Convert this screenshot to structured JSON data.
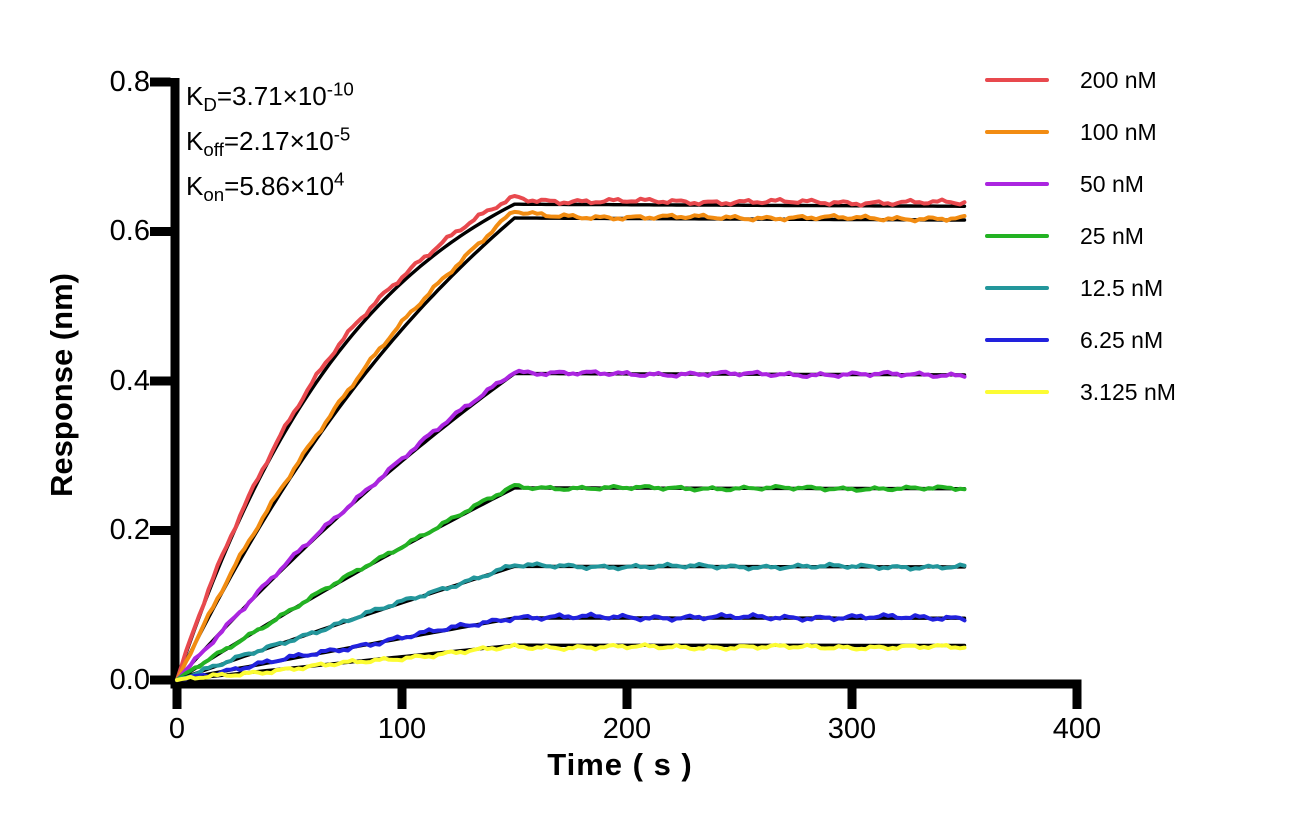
{
  "kinetics": [
    {
      "sym": "K",
      "sub": "D",
      "body": "=3.71×10",
      "exp": "-10"
    },
    {
      "sym": "K",
      "sub": "off",
      "body": "=2.17×10",
      "exp": "-5"
    },
    {
      "sym": "K",
      "sub": "on",
      "body": "=5.86×10",
      "exp": "4"
    }
  ],
  "chart_data": {
    "type": "line",
    "title": "",
    "xlabel": "Time ( s )",
    "ylabel": "Response (nm)",
    "xlim": [
      0,
      400
    ],
    "ylim": [
      0,
      0.8
    ],
    "xticks": [
      "0",
      "100",
      "200",
      "300",
      "400"
    ],
    "yticks": [
      "0.0",
      "0.2",
      "0.4",
      "0.6",
      "0.8"
    ],
    "grid": false,
    "legend_position": "right",
    "association_end_s": 150,
    "trace_end_s": 350,
    "kon_M_s": 58600,
    "koff_s": 2.17e-05,
    "KD_M": 3.71e-10,
    "fit_color": "#000000",
    "series": [
      {
        "label": "200 nM",
        "conc_nM": 200,
        "color": "#E8494E",
        "plateau_nm": 0.641
      },
      {
        "label": "100 nM",
        "conc_nM": 100,
        "color": "#F28C12",
        "plateau_nm": 0.62
      },
      {
        "label": "50 nM",
        "conc_nM": 50,
        "color": "#AB25E0",
        "plateau_nm": 0.41
      },
      {
        "label": "25 nM",
        "conc_nM": 25,
        "color": "#23B223",
        "plateau_nm": 0.257
      },
      {
        "label": "12.5 nM",
        "conc_nM": 12.5,
        "color": "#23969B",
        "plateau_nm": 0.152
      },
      {
        "label": "6.25 nM",
        "conc_nM": 6.25,
        "color": "#2222DD",
        "plateau_nm": 0.084
      },
      {
        "label": "3.125 nM",
        "conc_nM": 3.125,
        "color": "#FCFC33",
        "plateau_nm": 0.044
      }
    ]
  }
}
